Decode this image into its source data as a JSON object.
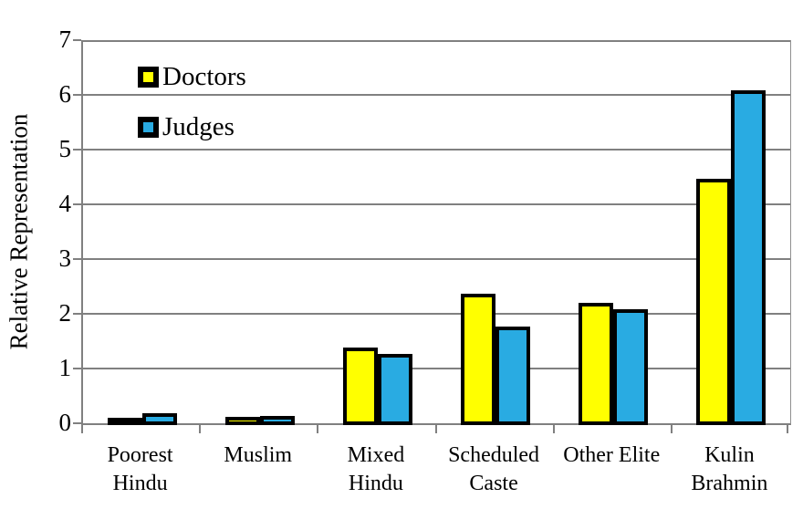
{
  "chart_data": {
    "type": "bar",
    "title": "",
    "xlabel": "",
    "ylabel": "Relative Representation",
    "ylim": [
      0,
      7
    ],
    "yticks": [
      0,
      1,
      2,
      3,
      4,
      5,
      6,
      7
    ],
    "grid": true,
    "legend_position": "inside-top-left",
    "categories": [
      "Poorest Hindu",
      "Muslim",
      "Mixed Hindu",
      "Scheduled Caste",
      "Other Elite",
      "Kulin Brahmin"
    ],
    "category_label_lines": [
      [
        "Poorest",
        "Hindu"
      ],
      [
        "Muslim"
      ],
      [
        "Mixed",
        "Hindu"
      ],
      [
        "Scheduled",
        "Caste"
      ],
      [
        "Other Elite"
      ],
      [
        "Kulin",
        "Brahmin"
      ]
    ],
    "series": [
      {
        "name": "Doctors",
        "color": "#FFFF00",
        "values": [
          0.08,
          0.12,
          1.38,
          2.37,
          2.2,
          4.47
        ]
      },
      {
        "name": "Judges",
        "color": "#29ABE2",
        "values": [
          0.18,
          0.14,
          1.27,
          1.77,
          2.08,
          6.08
        ]
      }
    ],
    "colors": {
      "bar_border": "#000000",
      "gridline": "#808080",
      "axis": "#808080",
      "text": "#000000",
      "background": "#FFFFFF"
    }
  }
}
